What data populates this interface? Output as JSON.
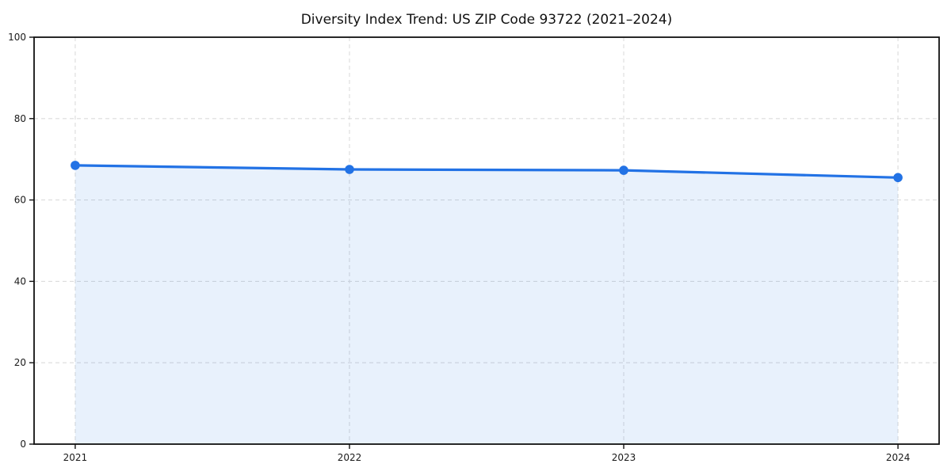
{
  "page": {
    "background_color": "#ffffff"
  },
  "chart_data": {
    "type": "line",
    "title": "Diversity Index Trend: US ZIP Code 93722 (2021–2024)",
    "x": [
      2021,
      2022,
      2023,
      2024
    ],
    "series": [
      {
        "name": "Diversity Index",
        "values": [
          68.5,
          67.5,
          67.3,
          65.5
        ]
      }
    ],
    "xlabel": "",
    "ylabel": "",
    "ylim": [
      0,
      100
    ],
    "yticks": [
      0,
      20,
      40,
      60,
      80,
      100
    ],
    "xticks": [
      2021,
      2022,
      2023,
      2024
    ],
    "xtick_labels": [
      "2021",
      "2022",
      "2023",
      "2024"
    ],
    "grid": true,
    "grid_style": "dashed",
    "legend": false,
    "area_fill": true,
    "marker": "circle",
    "colors": {
      "line": "#2272e5",
      "marker": "#2272e5",
      "fill": "rgba(34,114,229,0.10)",
      "grid": "#dcdcdc",
      "spine": "#111111",
      "text": "#111111"
    }
  }
}
